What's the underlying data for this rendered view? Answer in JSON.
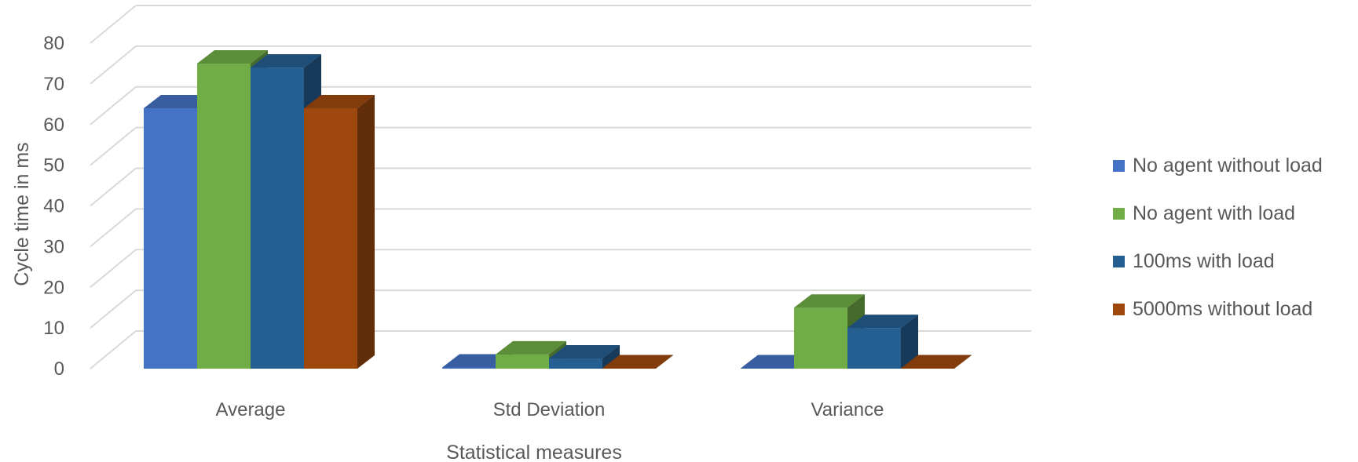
{
  "chart_data": {
    "type": "bar",
    "categories": [
      "Average",
      "Std Deviation",
      "Variance"
    ],
    "series": [
      {
        "name": "No agent without load",
        "values": [
          64,
          0.3,
          0.1
        ],
        "color": "#4472C4"
      },
      {
        "name": "No agent with load",
        "values": [
          75,
          3.5,
          15
        ],
        "color": "#70AD47"
      },
      {
        "name": "100ms with load",
        "values": [
          74,
          2.5,
          10
        ],
        "color": "#255E91"
      },
      {
        "name": "5000ms without load",
        "values": [
          64,
          0.1,
          0.1
        ],
        "color": "#9E480E"
      }
    ],
    "title": "",
    "xlabel": "Statistical measures",
    "ylabel": "Cycle time in ms",
    "ylim": [
      0,
      80
    ],
    "yticks": [
      0,
      10,
      20,
      30,
      40,
      50,
      60,
      70,
      80
    ],
    "grid": true,
    "legend_position": "right"
  }
}
